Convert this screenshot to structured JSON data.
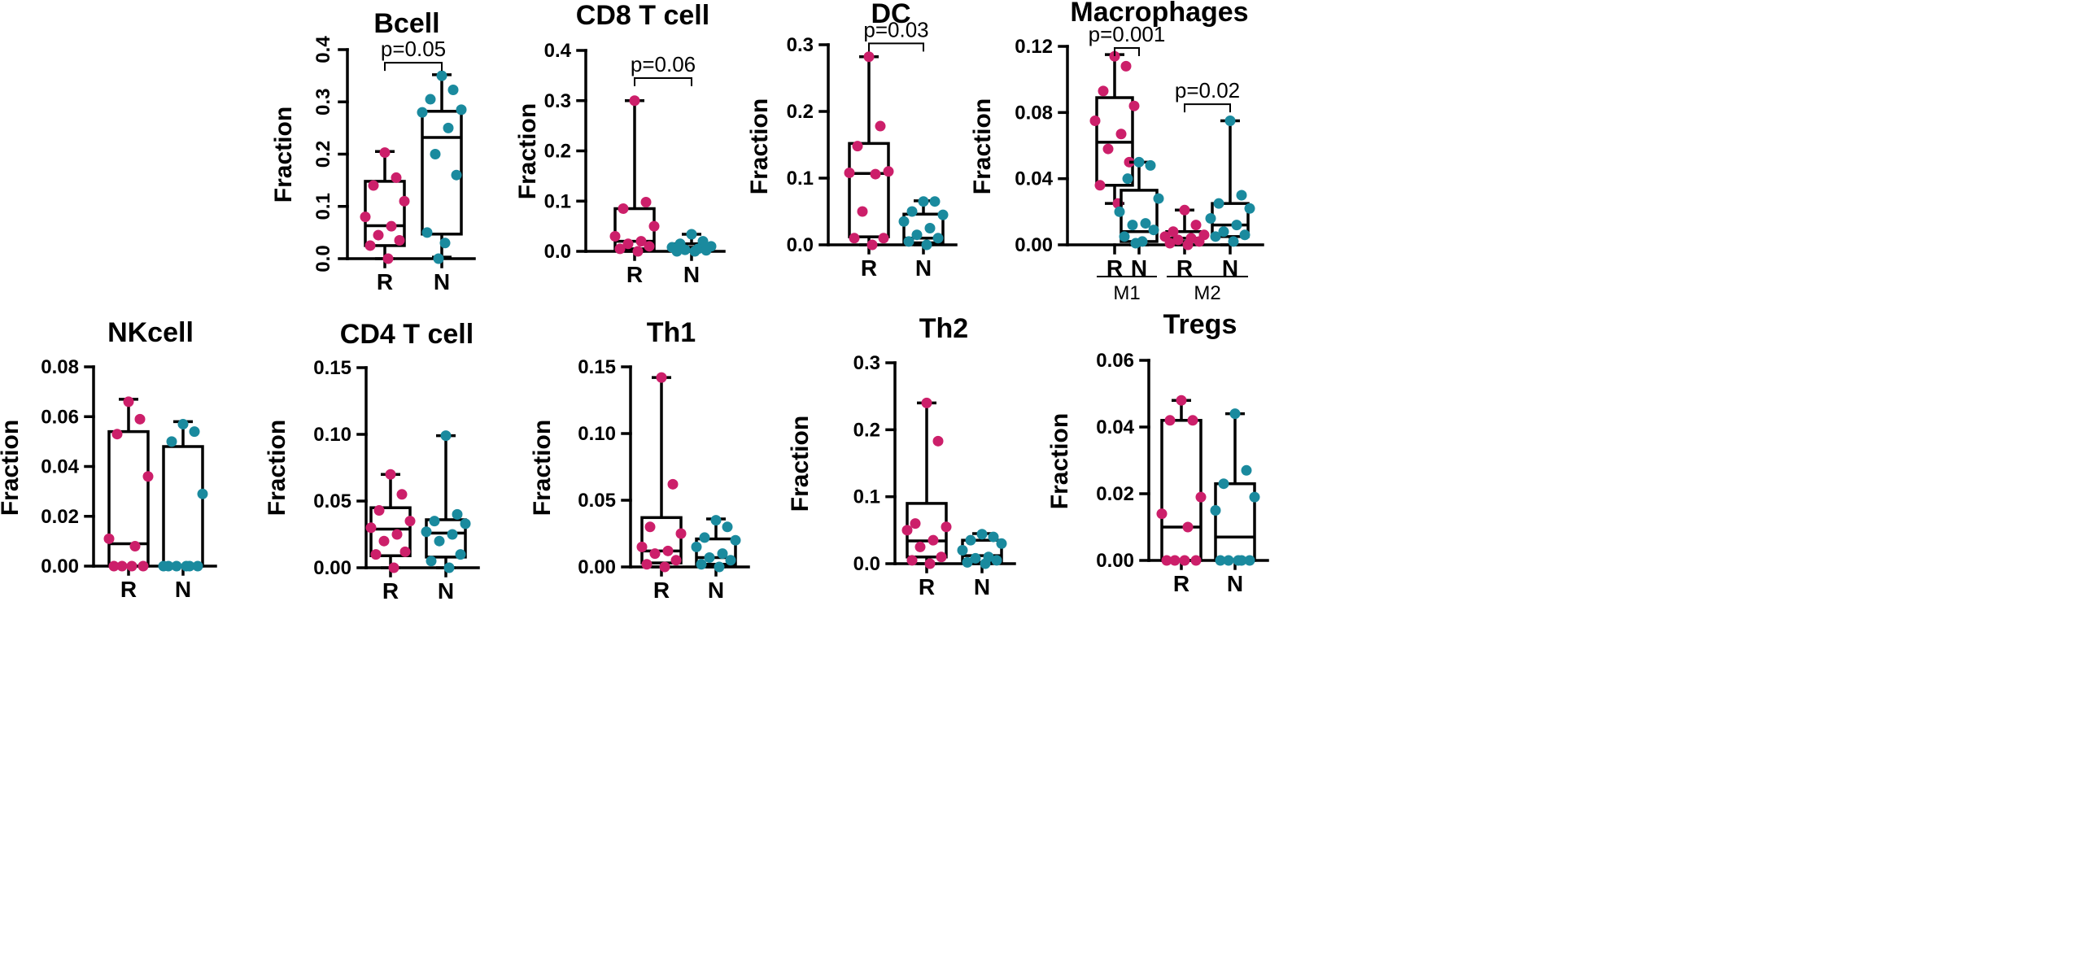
{
  "colors": {
    "R": "#cc1f6a",
    "N": "#1a8a9e"
  },
  "chart_data": [
    {
      "type": "box",
      "title": "Bcell",
      "ylabel": "Fraction",
      "ylim": [
        0,
        0.4
      ],
      "yticks": [
        0,
        0.1,
        0.2,
        0.3,
        0.4
      ],
      "ytick_labels": [
        "0.0",
        "0.1",
        "0.2",
        "0.3",
        "0.4"
      ],
      "rotated_ticks": true,
      "groups": [
        {
          "label": "R",
          "series": "R",
          "min": 0.0,
          "q1": 0.025,
          "median": 0.063,
          "q3": 0.148,
          "max": 0.205,
          "points": [
            0.203,
            0.155,
            0.14,
            0.11,
            0.08,
            0.062,
            0.045,
            0.035,
            0.025,
            0.0
          ]
        },
        {
          "label": "N",
          "series": "N",
          "min": 0.003,
          "q1": 0.047,
          "median": 0.232,
          "q3": 0.282,
          "max": 0.352,
          "points": [
            0.35,
            0.323,
            0.305,
            0.285,
            0.28,
            0.25,
            0.2,
            0.16,
            0.05,
            0.03,
            0.0
          ]
        }
      ],
      "annotations": [
        {
          "text": "p=0.05",
          "from": 0,
          "to": 1,
          "y": 0.375
        }
      ]
    },
    {
      "type": "box",
      "title": "CD8 T cell",
      "ylabel": "Fraction",
      "ylim": [
        0,
        0.4
      ],
      "yticks": [
        0,
        0.1,
        0.2,
        0.3,
        0.4
      ],
      "ytick_labels": [
        "0.0",
        "0.1",
        "0.2",
        "0.3",
        "0.4"
      ],
      "rotated_ticks": false,
      "groups": [
        {
          "label": "R",
          "series": "R",
          "min": 0.0,
          "q1": 0.005,
          "median": 0.02,
          "q3": 0.085,
          "max": 0.3,
          "points": [
            0.3,
            0.098,
            0.085,
            0.05,
            0.03,
            0.02,
            0.015,
            0.01,
            0.005,
            0.0
          ]
        },
        {
          "label": "N",
          "series": "N",
          "min": 0.0,
          "q1": 0.003,
          "median": 0.008,
          "q3": 0.015,
          "max": 0.034,
          "points": [
            0.034,
            0.02,
            0.015,
            0.01,
            0.008,
            0.005,
            0.003,
            0.002,
            0.0,
            0.0
          ]
        }
      ],
      "annotations": [
        {
          "text": "p=0.06",
          "from": 0,
          "to": 1,
          "y": 0.345
        }
      ]
    },
    {
      "type": "box",
      "title": "DC",
      "ylabel": "Fraction",
      "ylim": [
        0,
        0.3
      ],
      "yticks": [
        0,
        0.1,
        0.2,
        0.3
      ],
      "ytick_labels": [
        "0.0",
        "0.1",
        "0.2",
        "0.3"
      ],
      "rotated_ticks": false,
      "groups": [
        {
          "label": "R",
          "series": "R",
          "min": 0.0,
          "q1": 0.012,
          "median": 0.107,
          "q3": 0.152,
          "max": 0.282,
          "points": [
            0.282,
            0.178,
            0.148,
            0.11,
            0.108,
            0.106,
            0.05,
            0.01,
            0.01,
            0.0
          ]
        },
        {
          "label": "N",
          "series": "N",
          "min": 0.0,
          "q1": 0.003,
          "median": 0.01,
          "q3": 0.046,
          "max": 0.066,
          "points": [
            0.065,
            0.065,
            0.05,
            0.045,
            0.035,
            0.025,
            0.015,
            0.01,
            0.005,
            0.0
          ]
        }
      ],
      "annotations": [
        {
          "text": "p=0.03",
          "from": 0,
          "to": 1,
          "y": 0.302
        }
      ]
    },
    {
      "type": "box",
      "title": "Macrophages",
      "ylabel": "Fraction",
      "ylim": [
        0,
        0.12
      ],
      "yticks": [
        0,
        0.04,
        0.08,
        0.12
      ],
      "ytick_labels": [
        "0.00",
        "0.04",
        "0.08",
        "0.12"
      ],
      "rotated_ticks": false,
      "groups": [
        {
          "label": "R",
          "series": "R",
          "min": 0.025,
          "q1": 0.036,
          "median": 0.062,
          "q3": 0.089,
          "max": 0.115,
          "points": [
            0.114,
            0.108,
            0.093,
            0.084,
            0.075,
            0.067,
            0.058,
            0.05,
            0.036,
            0.025
          ]
        },
        {
          "label": "N",
          "series": "N",
          "min": 0.0,
          "q1": 0.002,
          "median": 0.008,
          "q3": 0.033,
          "max": 0.05,
          "points": [
            0.05,
            0.048,
            0.04,
            0.028,
            0.02,
            0.013,
            0.012,
            0.009,
            0.005,
            0.002,
            0.001
          ]
        },
        {
          "label": "R",
          "series": "R",
          "min": 0.0,
          "q1": 0.002,
          "median": 0.004,
          "q3": 0.008,
          "max": 0.021,
          "points": [
            0.021,
            0.012,
            0.008,
            0.006,
            0.005,
            0.004,
            0.003,
            0.002,
            0.001,
            0.0
          ]
        },
        {
          "label": "N",
          "series": "N",
          "min": 0.0,
          "q1": 0.005,
          "median": 0.012,
          "q3": 0.025,
          "max": 0.075,
          "points": [
            0.075,
            0.03,
            0.025,
            0.022,
            0.016,
            0.012,
            0.008,
            0.006,
            0.005,
            0.002
          ]
        }
      ],
      "subgroups": [
        {
          "label": "M1",
          "from": 0,
          "to": 1
        },
        {
          "label": "M2",
          "from": 2,
          "to": 3
        }
      ],
      "annotations": [
        {
          "text": "p=0.001",
          "from": 0,
          "to": 1,
          "y": 0.119
        },
        {
          "text": "p=0.02",
          "from": 2,
          "to": 3,
          "y": 0.085
        }
      ]
    },
    {
      "type": "box",
      "title": "NKcell",
      "ylabel": "Fraction",
      "ylim": [
        0,
        0.08
      ],
      "yticks": [
        0,
        0.02,
        0.04,
        0.06,
        0.08
      ],
      "ytick_labels": [
        "0.00",
        "0.02",
        "0.04",
        "0.06",
        "0.08"
      ],
      "rotated_ticks": false,
      "groups": [
        {
          "label": "R",
          "series": "R",
          "min": 0.0,
          "q1": 0.0,
          "median": 0.009,
          "q3": 0.054,
          "max": 0.067,
          "points": [
            0.066,
            0.059,
            0.053,
            0.036,
            0.011,
            0.008,
            0.0,
            0.0,
            0.0,
            0.0
          ]
        },
        {
          "label": "N",
          "series": "N",
          "min": 0.0,
          "q1": 0.0,
          "median": 0.0,
          "q3": 0.048,
          "max": 0.058,
          "points": [
            0.057,
            0.054,
            0.05,
            0.029,
            0.0,
            0.0,
            0.0,
            0.0,
            0.0,
            0.0
          ]
        }
      ]
    },
    {
      "type": "box",
      "title": "CD4 T cell",
      "ylabel": "Fraction",
      "ylim": [
        0,
        0.15
      ],
      "yticks": [
        0,
        0.05,
        0.1,
        0.15
      ],
      "ytick_labels": [
        "0.00",
        "0.05",
        "0.10",
        "0.15"
      ],
      "rotated_ticks": false,
      "groups": [
        {
          "label": "R",
          "series": "R",
          "min": 0.0,
          "q1": 0.009,
          "median": 0.029,
          "q3": 0.045,
          "max": 0.07,
          "points": [
            0.07,
            0.055,
            0.043,
            0.035,
            0.03,
            0.025,
            0.02,
            0.012,
            0.01,
            0.0
          ]
        },
        {
          "label": "N",
          "series": "N",
          "min": 0.0,
          "q1": 0.008,
          "median": 0.026,
          "q3": 0.036,
          "max": 0.099,
          "points": [
            0.099,
            0.04,
            0.035,
            0.033,
            0.027,
            0.025,
            0.02,
            0.01,
            0.005,
            0.0
          ]
        }
      ]
    },
    {
      "type": "box",
      "title": "Th1",
      "ylabel": "Fraction",
      "ylim": [
        0,
        0.15
      ],
      "yticks": [
        0,
        0.05,
        0.1,
        0.15
      ],
      "ytick_labels": [
        "0.00",
        "0.05",
        "0.10",
        "0.15"
      ],
      "rotated_ticks": false,
      "groups": [
        {
          "label": "R",
          "series": "R",
          "min": 0.0,
          "q1": 0.003,
          "median": 0.012,
          "q3": 0.037,
          "max": 0.142,
          "points": [
            0.142,
            0.062,
            0.03,
            0.025,
            0.015,
            0.012,
            0.01,
            0.005,
            0.002,
            0.0
          ]
        },
        {
          "label": "N",
          "series": "N",
          "min": 0.0,
          "q1": 0.002,
          "median": 0.007,
          "q3": 0.021,
          "max": 0.036,
          "points": [
            0.035,
            0.03,
            0.022,
            0.02,
            0.015,
            0.01,
            0.007,
            0.005,
            0.002,
            0.0
          ]
        }
      ]
    },
    {
      "type": "box",
      "title": "Th2",
      "ylabel": "Fraction",
      "ylim": [
        0,
        0.3
      ],
      "yticks": [
        0,
        0.1,
        0.2,
        0.3
      ],
      "ytick_labels": [
        "0.0",
        "0.1",
        "0.2",
        "0.3"
      ],
      "rotated_ticks": false,
      "groups": [
        {
          "label": "R",
          "series": "R",
          "min": 0.0,
          "q1": 0.01,
          "median": 0.034,
          "q3": 0.09,
          "max": 0.24,
          "points": [
            0.24,
            0.183,
            0.06,
            0.055,
            0.05,
            0.035,
            0.025,
            0.01,
            0.005,
            0.0
          ]
        },
        {
          "label": "N",
          "series": "N",
          "min": 0.0,
          "q1": 0.002,
          "median": 0.012,
          "q3": 0.035,
          "max": 0.045,
          "points": [
            0.044,
            0.04,
            0.035,
            0.03,
            0.02,
            0.01,
            0.008,
            0.005,
            0.002,
            0.0
          ]
        }
      ]
    },
    {
      "type": "box",
      "title": "Tregs",
      "ylabel": "Fraction",
      "ylim": [
        0,
        0.06
      ],
      "yticks": [
        0,
        0.02,
        0.04,
        0.06
      ],
      "ytick_labels": [
        "0.00",
        "0.02",
        "0.04",
        "0.06"
      ],
      "rotated_ticks": false,
      "groups": [
        {
          "label": "R",
          "series": "R",
          "min": 0.0,
          "q1": 0.0,
          "median": 0.01,
          "q3": 0.042,
          "max": 0.048,
          "points": [
            0.048,
            0.042,
            0.042,
            0.019,
            0.014,
            0.01,
            0.0,
            0.0,
            0.0,
            0.0
          ]
        },
        {
          "label": "N",
          "series": "N",
          "min": 0.0,
          "q1": 0.0,
          "median": 0.007,
          "q3": 0.023,
          "max": 0.044,
          "points": [
            0.044,
            0.027,
            0.023,
            0.019,
            0.015,
            0.0,
            0.0,
            0.0,
            0.0,
            0.0
          ]
        }
      ]
    }
  ]
}
